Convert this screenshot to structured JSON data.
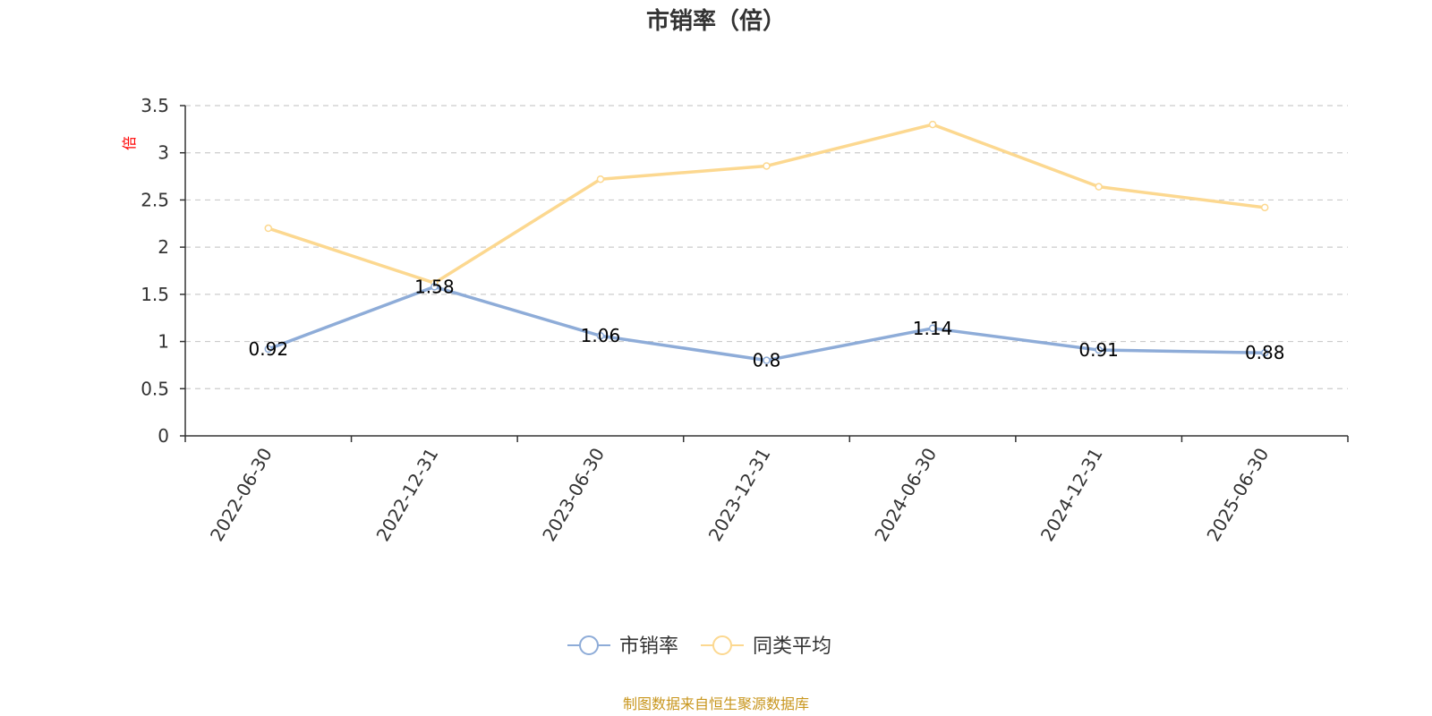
{
  "chart_data": {
    "type": "line",
    "title": "市销率（倍）",
    "ylabel": "倍",
    "xlabel": "",
    "categories": [
      "2022-06-30",
      "2022-12-31",
      "2023-06-30",
      "2023-12-31",
      "2024-06-30",
      "2024-12-31",
      "2025-06-30"
    ],
    "series": [
      {
        "name": "市销率",
        "values": [
          0.92,
          1.58,
          1.06,
          0.8,
          1.14,
          0.91,
          0.88
        ],
        "color": "#8eacd8",
        "show_labels": true
      },
      {
        "name": "同类平均",
        "values": [
          2.2,
          1.62,
          2.72,
          2.86,
          3.3,
          2.64,
          2.42
        ],
        "color": "#fcd890",
        "show_labels": false
      }
    ],
    "yticks": [
      "0",
      "0.5",
      "1",
      "1.5",
      "2",
      "2.5",
      "3",
      "3.5"
    ],
    "ylim": [
      0,
      3.5
    ],
    "grid": true,
    "legend_position": "bottom-center"
  },
  "source_text": "制图数据来自恒生聚源数据库",
  "colors": {
    "title": "#333333",
    "axis": "#333333",
    "grid": "#cccccc",
    "unit": "#ff0000",
    "source": "#c8961e"
  }
}
